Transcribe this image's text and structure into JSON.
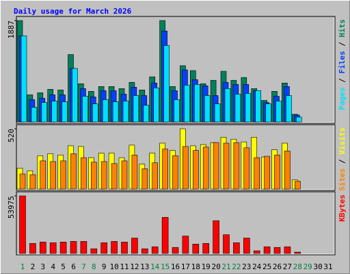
{
  "chart_data": [
    {
      "type": "bar",
      "title": "Daily usage for March 2026",
      "title_color": "#0000ff",
      "ylim": [
        0,
        1887
      ],
      "yticks": [
        1887
      ],
      "legend_separator": " / ",
      "series": [
        {
          "name": "Hits",
          "color": "#00805c",
          "values": [
            1887,
            504,
            543,
            607,
            595,
            1254,
            711,
            569,
            659,
            659,
            620,
            737,
            595,
            840,
            1887,
            659,
            1047,
            956,
            711,
            775,
            943,
            775,
            827,
            620,
            401,
            569,
            724,
            142,
            null,
            null,
            null
          ]
        },
        {
          "name": "Files",
          "color": "#0040ff",
          "values": [
            1603,
            414,
            440,
            504,
            504,
            995,
            620,
            465,
            582,
            582,
            517,
            646,
            491,
            724,
            1693,
            582,
            969,
            788,
            672,
            491,
            737,
            698,
            698,
            582,
            362,
            478,
            659,
            129,
            null,
            null,
            null
          ]
        },
        {
          "name": "Pages",
          "color": "#00e0ff",
          "values": [
            1603,
            271,
            362,
            388,
            375,
            995,
            478,
            336,
            414,
            375,
            388,
            491,
            310,
            633,
            1422,
            414,
            685,
            698,
            491,
            336,
            620,
            517,
            530,
            582,
            336,
            388,
            491,
            90,
            null,
            null,
            null
          ]
        }
      ]
    },
    {
      "type": "bar",
      "ylim": [
        0,
        520
      ],
      "yticks": [
        520
      ],
      "legend_separator": " / ",
      "series": [
        {
          "name": "Visits",
          "color": "#ffff00",
          "values": [
            181,
            158,
            288,
            305,
            294,
            373,
            367,
            271,
            311,
            311,
            271,
            379,
            215,
            311,
            396,
            333,
            520,
            373,
            384,
            401,
            447,
            430,
            407,
            447,
            277,
            339,
            396,
            79,
            null,
            null,
            null
          ]
        },
        {
          "name": "Sites",
          "color": "#ff8000",
          "values": [
            130,
            124,
            243,
            237,
            243,
            305,
            271,
            232,
            237,
            220,
            243,
            294,
            175,
            226,
            345,
            288,
            367,
            333,
            362,
            401,
            396,
            401,
            356,
            271,
            283,
            294,
            328,
            68,
            null,
            null,
            null
          ]
        }
      ]
    },
    {
      "type": "bar",
      "ylim": [
        0,
        53975
      ],
      "yticks": [
        53975
      ],
      "legend_separator": " / ",
      "categories": [
        "1",
        "2",
        "3",
        "4",
        "5",
        "6",
        "7",
        "8",
        "9",
        "10",
        "11",
        "12",
        "13",
        "14",
        "15",
        "16",
        "17",
        "18",
        "19",
        "20",
        "21",
        "22",
        "23",
        "24",
        "25",
        "26",
        "27",
        "28",
        "29",
        "30",
        "31"
      ],
      "category_colors": [
        "#008040",
        "#000000",
        "#000000",
        "#000000",
        "#000000",
        "#000000",
        "#008040",
        "#008040",
        "#000000",
        "#000000",
        "#000000",
        "#000000",
        "#000000",
        "#008040",
        "#008040",
        "#000000",
        "#000000",
        "#000000",
        "#000000",
        "#000000",
        "#008040",
        "#008040",
        "#000000",
        "#000000",
        "#000000",
        "#000000",
        "#000000",
        "#008040",
        "#008040",
        "#000000",
        "#000000"
      ],
      "series": [
        {
          "name": "KBytes",
          "color": "#ff0000",
          "values": [
            53975,
            9414,
            10670,
            10042,
            10670,
            11297,
            11297,
            4393,
            10042,
            11297,
            10670,
            14435,
            4393,
            6276,
            33891,
            5648,
            16318,
            8787,
            9414,
            30753,
            17573,
            10042,
            14435,
            2510,
            6276,
            5648,
            6276,
            1255,
            null,
            null,
            null
          ]
        }
      ]
    }
  ]
}
